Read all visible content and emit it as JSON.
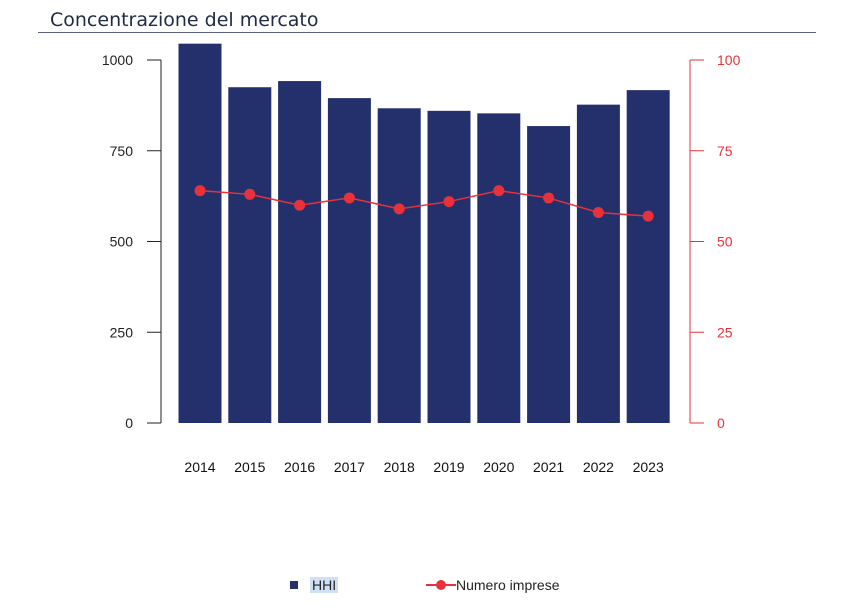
{
  "title": "Concentrazione del mercato",
  "colors": {
    "bar": "#24306b",
    "line": "#e8313a",
    "axis_right": "#e8313a",
    "axis_left": "#222222"
  },
  "chart_data": {
    "type": "bar",
    "categories": [
      "2014",
      "2015",
      "2016",
      "2017",
      "2018",
      "2019",
      "2020",
      "2021",
      "2022",
      "2023"
    ],
    "series": [
      {
        "name": "HHI",
        "type": "bar",
        "axis": "left",
        "values": [
          1045,
          925,
          942,
          895,
          867,
          860,
          853,
          818,
          877,
          917
        ]
      },
      {
        "name": "Numero imprese",
        "type": "line",
        "axis": "right",
        "values": [
          64,
          63,
          60,
          62,
          59,
          61,
          64,
          62,
          58,
          57
        ]
      }
    ],
    "y_left": {
      "ylim": [
        0,
        1000
      ],
      "ticks": [
        0,
        250,
        500,
        750,
        1000
      ]
    },
    "y_right": {
      "ylim": [
        0,
        100
      ],
      "ticks": [
        0,
        25,
        50,
        75,
        100
      ]
    },
    "grid": false,
    "legend": "bottom"
  },
  "legend": {
    "hhi": "HHI",
    "numero": "Numero imprese"
  }
}
